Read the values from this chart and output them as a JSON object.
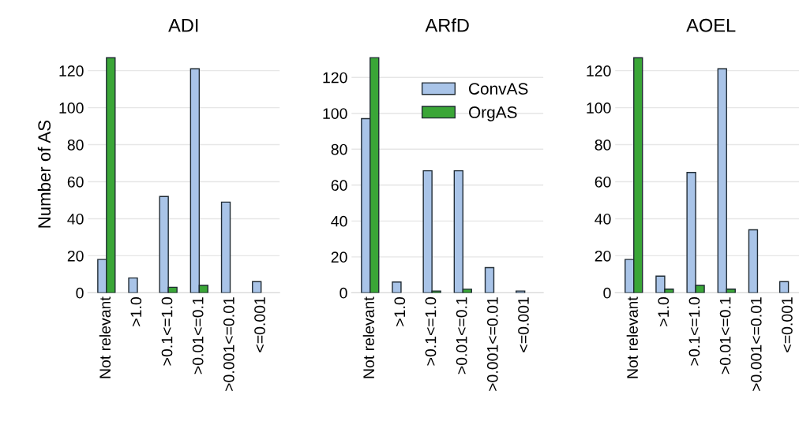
{
  "chart_data": [
    {
      "type": "bar",
      "title": "ADI",
      "ylabel": "Number of AS",
      "categories": [
        "Not relevant",
        ">1.0",
        ">0.1<=1.0",
        ">0.01<=0.1",
        ">0.001<=0.01",
        "<=0.001"
      ],
      "ylim": [
        0,
        128
      ],
      "yticks": [
        0,
        20,
        40,
        60,
        80,
        100,
        120
      ],
      "grid": "y",
      "series": [
        {
          "color": "#a9c4e8",
          "values": [
            18,
            8,
            52,
            121,
            49,
            6
          ]
        },
        {
          "color": "#3aa637",
          "values": [
            127,
            null,
            3,
            4,
            null,
            null
          ]
        }
      ]
    },
    {
      "type": "bar",
      "title": "ARfD",
      "categories": [
        "Not relevant",
        ">1.0",
        ">0.1<=1.0",
        ">0.01<=0.1",
        ">0.001<=0.01",
        "<=0.001"
      ],
      "ylim": [
        0,
        132
      ],
      "yticks": [
        0,
        20,
        40,
        60,
        80,
        100,
        120
      ],
      "grid": "y",
      "legend": "top right",
      "series": [
        {
          "name": "ConvAS",
          "color": "#a9c4e8",
          "values": [
            97,
            6,
            68,
            68,
            14,
            1
          ]
        },
        {
          "name": "OrgAS",
          "color": "#3aa637",
          "values": [
            131,
            null,
            1,
            2,
            null,
            null
          ]
        }
      ]
    },
    {
      "type": "bar",
      "title": "AOEL",
      "categories": [
        "Not relevant",
        ">1.0",
        ">0.1<=1.0",
        ">0.01<=0.1",
        ">0.001<=0.01",
        "<=0.001"
      ],
      "ylim": [
        0,
        128
      ],
      "yticks": [
        0,
        20,
        40,
        60,
        80,
        100,
        120
      ],
      "grid": "y",
      "series": [
        {
          "color": "#a9c4e8",
          "values": [
            18,
            9,
            65,
            121,
            34,
            6
          ]
        },
        {
          "color": "#3aa637",
          "values": [
            127,
            2,
            4,
            2,
            null,
            null
          ]
        }
      ]
    }
  ]
}
